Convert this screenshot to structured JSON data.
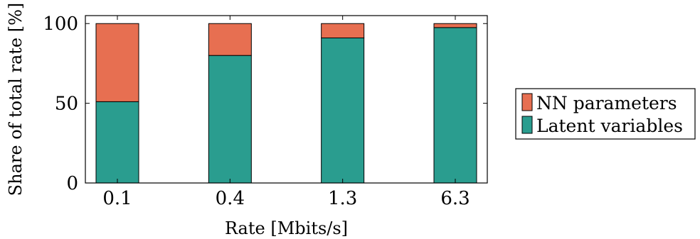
{
  "chart_data": {
    "type": "bar",
    "stacked": true,
    "title": "",
    "xlabel": "Rate [Mbits/s]",
    "ylabel": "Share of total rate [%]",
    "ylim": [
      0,
      105
    ],
    "yticks": [
      "0",
      "50",
      "100"
    ],
    "categories": [
      "0.1",
      "0.4",
      "1.3",
      "6.3"
    ],
    "series": [
      {
        "name": "Latent variables",
        "values": [
          51,
          80,
          91,
          97.5
        ],
        "color": "#2a9d8f"
      },
      {
        "name": "NN parameters",
        "values": [
          49,
          20,
          9,
          2.5
        ],
        "color": "#e76f51"
      }
    ],
    "legend": {
      "placement": "right",
      "order": [
        "NN parameters",
        "Latent variables"
      ]
    },
    "grid": false
  }
}
